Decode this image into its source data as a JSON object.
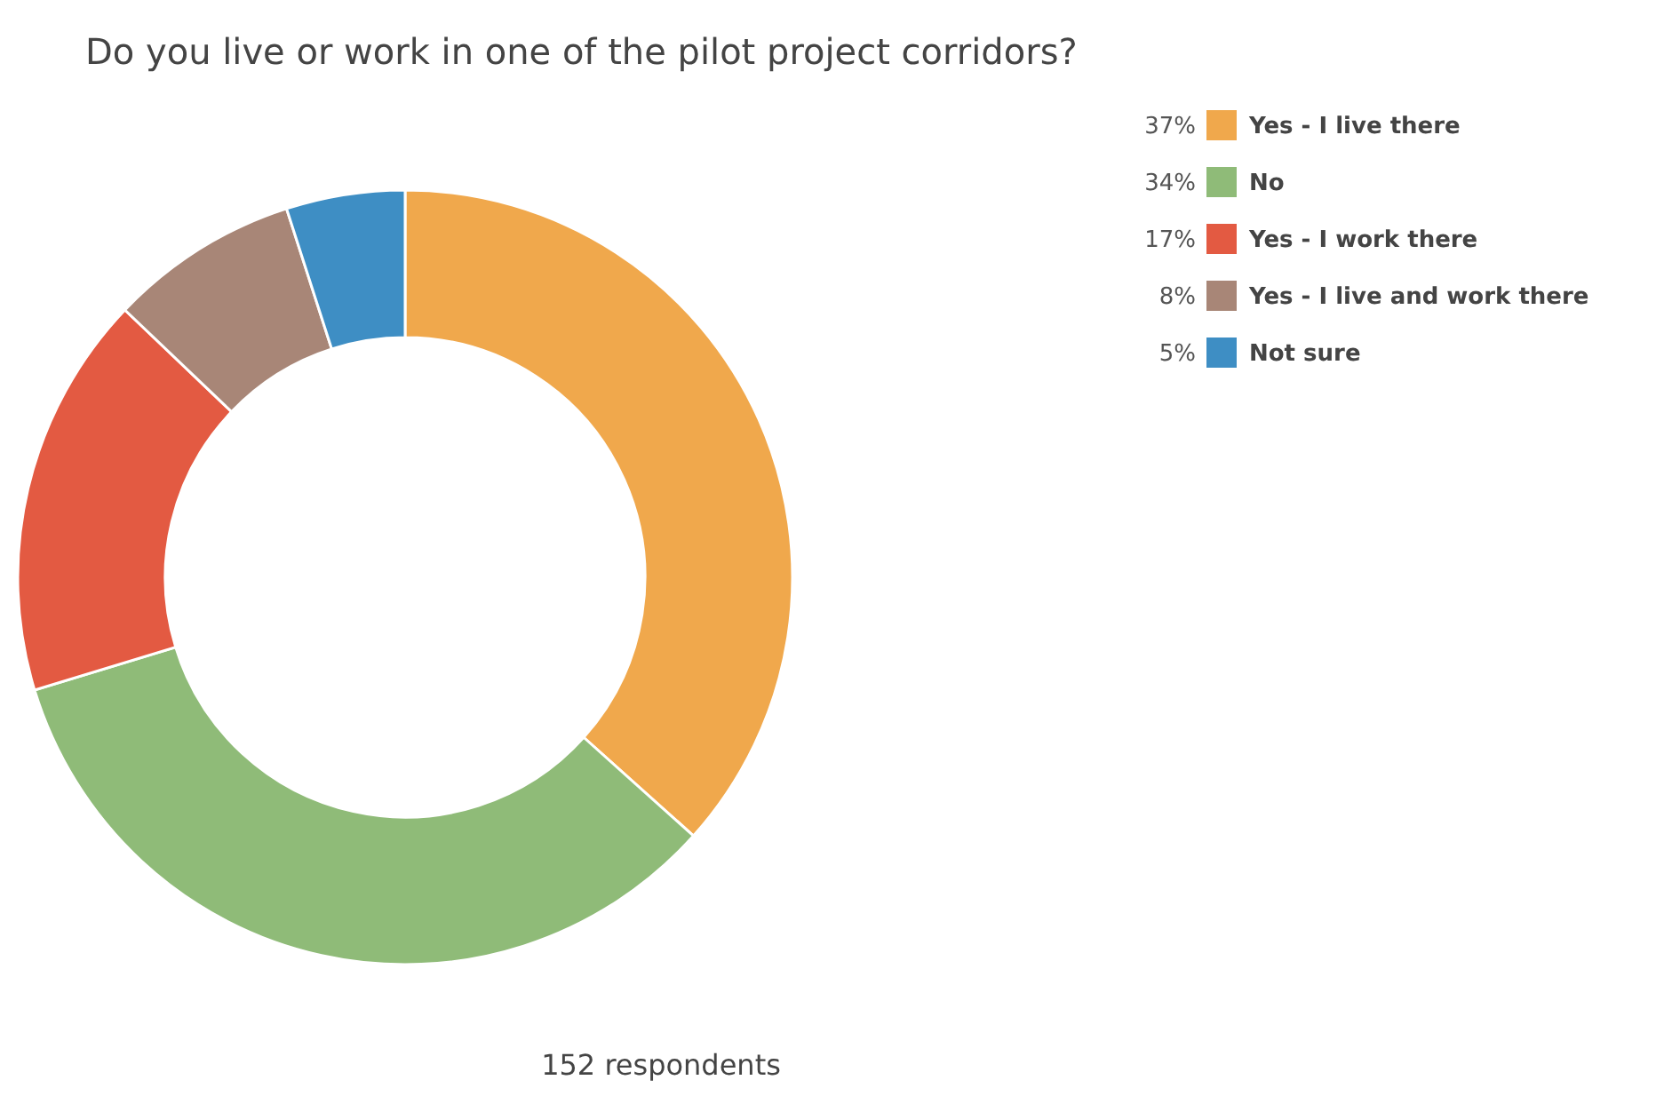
{
  "chart_data": {
    "type": "donut",
    "title": "Do you live or work in one of the pilot project corridors?",
    "categories": [
      "Yes - I live there",
      "No",
      "Yes - I work there",
      "Yes - I live and work there",
      "Not sure"
    ],
    "values": [
      37,
      34,
      17,
      8,
      5
    ],
    "value_labels": [
      "37%",
      "34%",
      "17%",
      "8%",
      "5%"
    ],
    "colors": [
      "#f0a84c",
      "#8fbb78",
      "#e35a42",
      "#a88677",
      "#3e8ec4"
    ],
    "legend": "top right",
    "annotations": [
      "152 respondents"
    ]
  }
}
